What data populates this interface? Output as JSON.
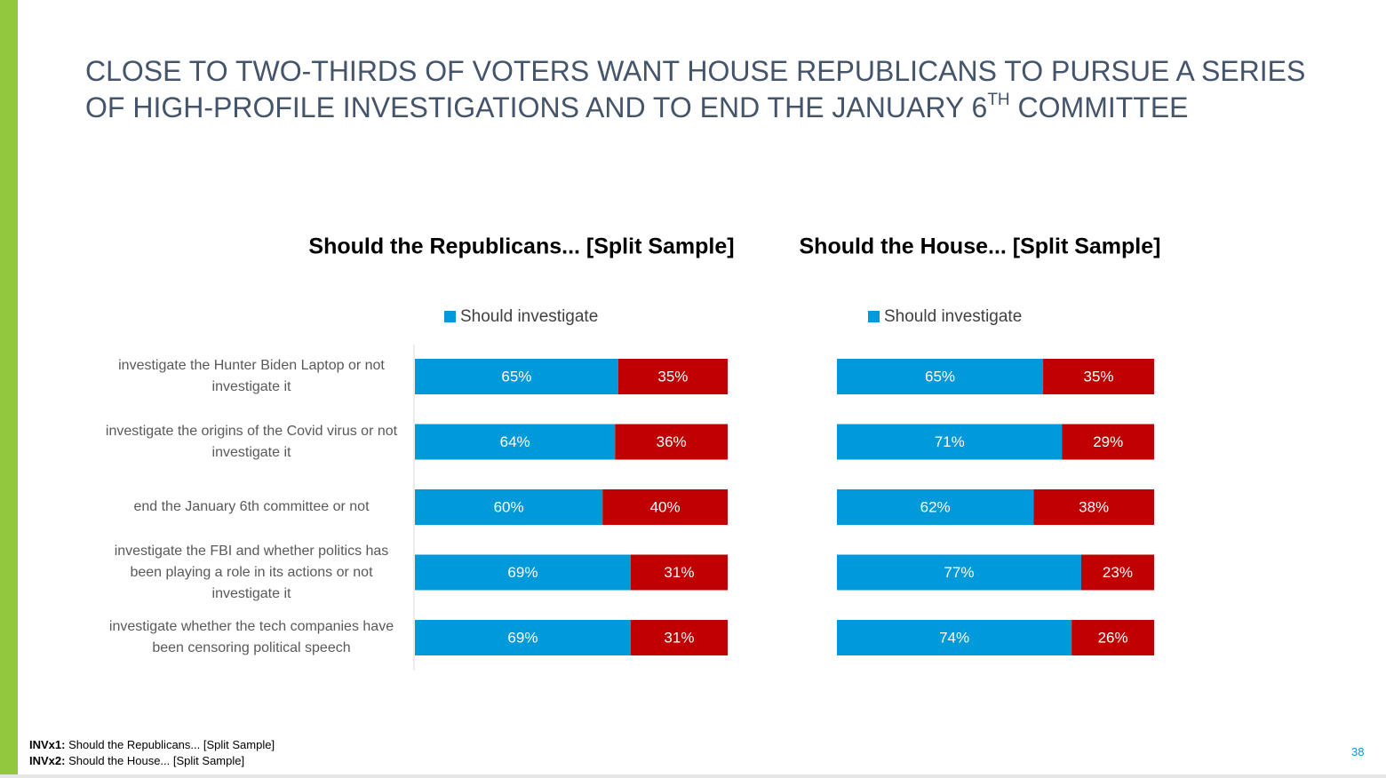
{
  "slide_title": {
    "lines": [
      "CLOSE TO TWO-THIRDS OF VOTERS WANT HOUSE REPUBLICANS TO PURSUE A SERIES",
      "OF HIGH-PROFILE INVESTIGATIONS AND TO END THE JANUARY 6"
    ],
    "superscript": "TH",
    "end": " COMMITTEE"
  },
  "chart_data": [
    {
      "type": "bar",
      "orientation": "horizontal",
      "stacked": true,
      "title": "Should the Republicans... [Split Sample]",
      "categories": [
        "investigate the Hunter Biden Laptop or not investigate it",
        "investigate the origins of the Covid virus or not investigate it",
        "end the January 6th committee or not",
        "investigate the FBI and whether politics has been playing a role in its actions or not investigate it",
        "investigate whether the tech companies have been censoring political speech"
      ],
      "xlim": [
        0,
        100
      ],
      "series": [
        {
          "name": "Should investigate",
          "color": "#0099d9",
          "values": [
            65,
            64,
            60,
            69,
            69
          ],
          "value_labels": [
            "65%",
            "64%",
            "60%",
            "69%",
            "69%"
          ]
        },
        {
          "color": "#c00000",
          "values": [
            35,
            36,
            40,
            31,
            31
          ],
          "value_labels": [
            "35%",
            "36%",
            "40%",
            "31%",
            "31%"
          ]
        }
      ]
    },
    {
      "type": "bar",
      "orientation": "horizontal",
      "stacked": true,
      "title": "Should the House... [Split Sample]",
      "categories": [
        null,
        null,
        null,
        null,
        null
      ],
      "xlim": [
        0,
        100
      ],
      "series": [
        {
          "name": "Should investigate",
          "color": "#0099d9",
          "values": [
            65,
            71,
            62,
            77,
            74
          ],
          "value_labels": [
            "65%",
            "71%",
            "62%",
            "77%",
            "74%"
          ]
        },
        {
          "color": "#c00000",
          "values": [
            35,
            29,
            38,
            23,
            26
          ],
          "value_labels": [
            "35%",
            "29%",
            "38%",
            "23%",
            "26%"
          ]
        }
      ]
    }
  ],
  "footnotes": [
    {
      "code": "INVx1:",
      "text": " Should the Republicans... [Split Sample]"
    },
    {
      "code": "INVx2:",
      "text": " Should the House... [Split Sample]"
    }
  ],
  "page_number": "38"
}
